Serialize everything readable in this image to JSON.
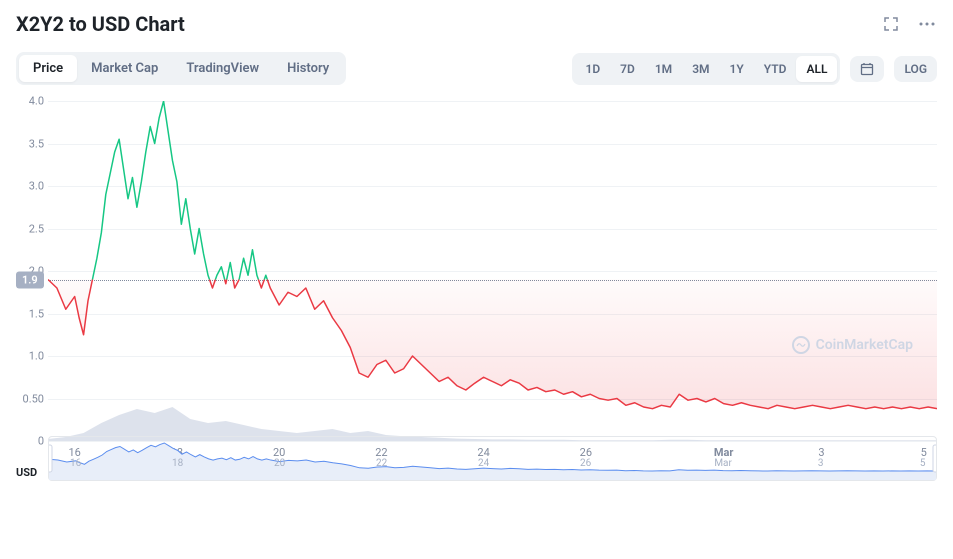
{
  "title": "X2Y2 to USD Chart",
  "tabs": {
    "items": [
      "Price",
      "Market Cap",
      "TradingView",
      "History"
    ],
    "active": "Price"
  },
  "ranges": {
    "items": [
      "1D",
      "7D",
      "1M",
      "3M",
      "1Y",
      "YTD",
      "ALL"
    ],
    "active": "ALL"
  },
  "log_label": "LOG",
  "usd_label": "USD",
  "watermark": "CoinMarketCap",
  "chart": {
    "type": "line",
    "ylim": [
      0,
      4.0
    ],
    "ytick_step": 0.5,
    "yticks": [
      0,
      0.5,
      1.0,
      1.5,
      2.0,
      2.5,
      3.0,
      3.5,
      4.0
    ],
    "ytick_labels": [
      "0",
      "0.50",
      "1.0",
      "1.5",
      "2.0",
      "2.5",
      "3.0",
      "3.5",
      "4.0"
    ],
    "baseline": 1.9,
    "baseline_label": "1.9",
    "xticks": [
      {
        "pos": 0.03,
        "label": "16"
      },
      {
        "pos": 0.145,
        "label": "18"
      },
      {
        "pos": 0.26,
        "label": "20"
      },
      {
        "pos": 0.375,
        "label": "22"
      },
      {
        "pos": 0.49,
        "label": "24"
      },
      {
        "pos": 0.605,
        "label": "26"
      },
      {
        "pos": 0.76,
        "label": "Mar"
      },
      {
        "pos": 0.87,
        "label": "3"
      },
      {
        "pos": 0.985,
        "label": "5"
      }
    ],
    "colors": {
      "above": "#16c784",
      "below": "#ea3943",
      "below_fill": "rgba(234,57,67,0.08)",
      "volume": "#cfd6e4",
      "grid": "#eff2f5",
      "baseline_dot": "#808a9d",
      "baseline_bg": "#a6b0c3",
      "brush_line": "#5b8def",
      "text": "#808a9d",
      "bg": "#ffffff"
    },
    "price_points": [
      [
        0.0,
        1.9
      ],
      [
        0.01,
        1.8
      ],
      [
        0.02,
        1.55
      ],
      [
        0.03,
        1.7
      ],
      [
        0.035,
        1.45
      ],
      [
        0.04,
        1.25
      ],
      [
        0.045,
        1.65
      ],
      [
        0.05,
        1.9
      ],
      [
        0.055,
        2.15
      ],
      [
        0.06,
        2.45
      ],
      [
        0.065,
        2.9
      ],
      [
        0.07,
        3.15
      ],
      [
        0.075,
        3.4
      ],
      [
        0.08,
        3.55
      ],
      [
        0.085,
        3.2
      ],
      [
        0.09,
        2.85
      ],
      [
        0.095,
        3.1
      ],
      [
        0.1,
        2.75
      ],
      [
        0.105,
        3.05
      ],
      [
        0.11,
        3.4
      ],
      [
        0.115,
        3.7
      ],
      [
        0.12,
        3.5
      ],
      [
        0.125,
        3.8
      ],
      [
        0.13,
        4.0
      ],
      [
        0.135,
        3.65
      ],
      [
        0.14,
        3.3
      ],
      [
        0.145,
        3.05
      ],
      [
        0.15,
        2.55
      ],
      [
        0.155,
        2.85
      ],
      [
        0.16,
        2.5
      ],
      [
        0.165,
        2.2
      ],
      [
        0.17,
        2.5
      ],
      [
        0.175,
        2.2
      ],
      [
        0.18,
        1.95
      ],
      [
        0.185,
        1.8
      ],
      [
        0.19,
        1.95
      ],
      [
        0.195,
        2.05
      ],
      [
        0.2,
        1.85
      ],
      [
        0.205,
        2.1
      ],
      [
        0.21,
        1.8
      ],
      [
        0.215,
        1.9
      ],
      [
        0.22,
        2.15
      ],
      [
        0.225,
        1.95
      ],
      [
        0.23,
        2.25
      ],
      [
        0.235,
        1.95
      ],
      [
        0.24,
        1.8
      ],
      [
        0.245,
        1.95
      ],
      [
        0.25,
        1.8
      ],
      [
        0.26,
        1.6
      ],
      [
        0.27,
        1.75
      ],
      [
        0.28,
        1.7
      ],
      [
        0.29,
        1.8
      ],
      [
        0.3,
        1.55
      ],
      [
        0.31,
        1.65
      ],
      [
        0.32,
        1.45
      ],
      [
        0.33,
        1.3
      ],
      [
        0.34,
        1.1
      ],
      [
        0.35,
        0.8
      ],
      [
        0.36,
        0.75
      ],
      [
        0.37,
        0.9
      ],
      [
        0.38,
        0.95
      ],
      [
        0.39,
        0.8
      ],
      [
        0.4,
        0.85
      ],
      [
        0.41,
        1.0
      ],
      [
        0.42,
        0.9
      ],
      [
        0.43,
        0.8
      ],
      [
        0.44,
        0.7
      ],
      [
        0.45,
        0.75
      ],
      [
        0.46,
        0.65
      ],
      [
        0.47,
        0.6
      ],
      [
        0.48,
        0.68
      ],
      [
        0.49,
        0.75
      ],
      [
        0.5,
        0.7
      ],
      [
        0.51,
        0.65
      ],
      [
        0.52,
        0.72
      ],
      [
        0.53,
        0.68
      ],
      [
        0.54,
        0.6
      ],
      [
        0.55,
        0.63
      ],
      [
        0.56,
        0.58
      ],
      [
        0.57,
        0.6
      ],
      [
        0.58,
        0.55
      ],
      [
        0.59,
        0.58
      ],
      [
        0.6,
        0.52
      ],
      [
        0.61,
        0.55
      ],
      [
        0.62,
        0.5
      ],
      [
        0.63,
        0.48
      ],
      [
        0.64,
        0.5
      ],
      [
        0.65,
        0.42
      ],
      [
        0.66,
        0.45
      ],
      [
        0.67,
        0.4
      ],
      [
        0.68,
        0.38
      ],
      [
        0.69,
        0.42
      ],
      [
        0.7,
        0.4
      ],
      [
        0.71,
        0.55
      ],
      [
        0.72,
        0.48
      ],
      [
        0.73,
        0.5
      ],
      [
        0.74,
        0.46
      ],
      [
        0.75,
        0.5
      ],
      [
        0.76,
        0.44
      ],
      [
        0.77,
        0.42
      ],
      [
        0.78,
        0.45
      ],
      [
        0.79,
        0.42
      ],
      [
        0.8,
        0.4
      ],
      [
        0.81,
        0.38
      ],
      [
        0.82,
        0.42
      ],
      [
        0.83,
        0.4
      ],
      [
        0.84,
        0.38
      ],
      [
        0.85,
        0.4
      ],
      [
        0.86,
        0.42
      ],
      [
        0.87,
        0.4
      ],
      [
        0.88,
        0.38
      ],
      [
        0.89,
        0.4
      ],
      [
        0.9,
        0.42
      ],
      [
        0.91,
        0.4
      ],
      [
        0.92,
        0.38
      ],
      [
        0.93,
        0.4
      ],
      [
        0.94,
        0.38
      ],
      [
        0.95,
        0.4
      ],
      [
        0.96,
        0.38
      ],
      [
        0.97,
        0.4
      ],
      [
        0.98,
        0.38
      ],
      [
        0.99,
        0.4
      ],
      [
        1.0,
        0.38
      ]
    ],
    "volume_points": [
      [
        0.0,
        0.05
      ],
      [
        0.02,
        0.1
      ],
      [
        0.04,
        0.2
      ],
      [
        0.06,
        0.45
      ],
      [
        0.08,
        0.65
      ],
      [
        0.1,
        0.8
      ],
      [
        0.12,
        0.7
      ],
      [
        0.14,
        0.85
      ],
      [
        0.16,
        0.55
      ],
      [
        0.18,
        0.45
      ],
      [
        0.2,
        0.5
      ],
      [
        0.22,
        0.4
      ],
      [
        0.24,
        0.3
      ],
      [
        0.26,
        0.25
      ],
      [
        0.28,
        0.2
      ],
      [
        0.3,
        0.25
      ],
      [
        0.32,
        0.3
      ],
      [
        0.34,
        0.2
      ],
      [
        0.36,
        0.25
      ],
      [
        0.38,
        0.15
      ],
      [
        0.4,
        0.12
      ],
      [
        0.42,
        0.1
      ],
      [
        0.44,
        0.08
      ],
      [
        0.46,
        0.06
      ],
      [
        0.48,
        0.05
      ],
      [
        0.5,
        0.04
      ],
      [
        0.52,
        0.04
      ],
      [
        0.54,
        0.03
      ],
      [
        0.56,
        0.03
      ],
      [
        0.58,
        0.03
      ],
      [
        0.6,
        0.02
      ],
      [
        0.62,
        0.02
      ],
      [
        0.64,
        0.02
      ],
      [
        0.66,
        0.02
      ],
      [
        0.68,
        0.02
      ],
      [
        0.7,
        0.03
      ],
      [
        0.72,
        0.03
      ],
      [
        0.74,
        0.02
      ],
      [
        0.76,
        0.02
      ],
      [
        0.78,
        0.02
      ],
      [
        0.8,
        0.02
      ],
      [
        0.82,
        0.02
      ],
      [
        0.84,
        0.02
      ],
      [
        0.86,
        0.02
      ],
      [
        0.88,
        0.02
      ],
      [
        0.9,
        0.02
      ],
      [
        0.92,
        0.02
      ],
      [
        0.94,
        0.02
      ],
      [
        0.96,
        0.02
      ],
      [
        0.98,
        0.02
      ],
      [
        1.0,
        0.02
      ]
    ]
  },
  "brush": {
    "xticks": [
      {
        "pos": 0.03,
        "label": "16"
      },
      {
        "pos": 0.145,
        "label": "18"
      },
      {
        "pos": 0.26,
        "label": "20"
      },
      {
        "pos": 0.375,
        "label": "22"
      },
      {
        "pos": 0.49,
        "label": "24"
      },
      {
        "pos": 0.605,
        "label": "26"
      },
      {
        "pos": 0.76,
        "label": "Mar"
      },
      {
        "pos": 0.87,
        "label": "3"
      },
      {
        "pos": 0.985,
        "label": "5"
      }
    ]
  }
}
